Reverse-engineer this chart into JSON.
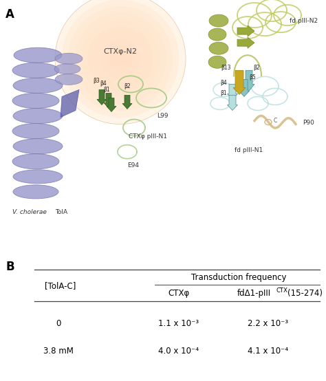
{
  "panel_a_label": "A",
  "panel_b_label": "B",
  "bg_color": "#ffffff",
  "line_color": "#444444",
  "font_size_table": 8.5,
  "table_rows": [
    [
      "0",
      "1.1 x 10⁻³",
      "2.2 x 10⁻³"
    ],
    [
      "3.8 mM",
      "4.0 x 10⁻⁴",
      "4.1 x 10⁻⁴"
    ]
  ],
  "helix_color": "#9999cc",
  "helix_edge": "#7777aa",
  "green_dark": "#4a7a35",
  "green_light": "#a0c880",
  "olive_color": "#9aaa3a",
  "olive_dark": "#7a8a1a",
  "teal_color": "#88c4c4",
  "teal_light": "#b8dede",
  "gold_color": "#c8a820",
  "beige_color": "#d4b880",
  "sphere_face": "#f5dfc0",
  "sphere_edge": "#e8c898"
}
